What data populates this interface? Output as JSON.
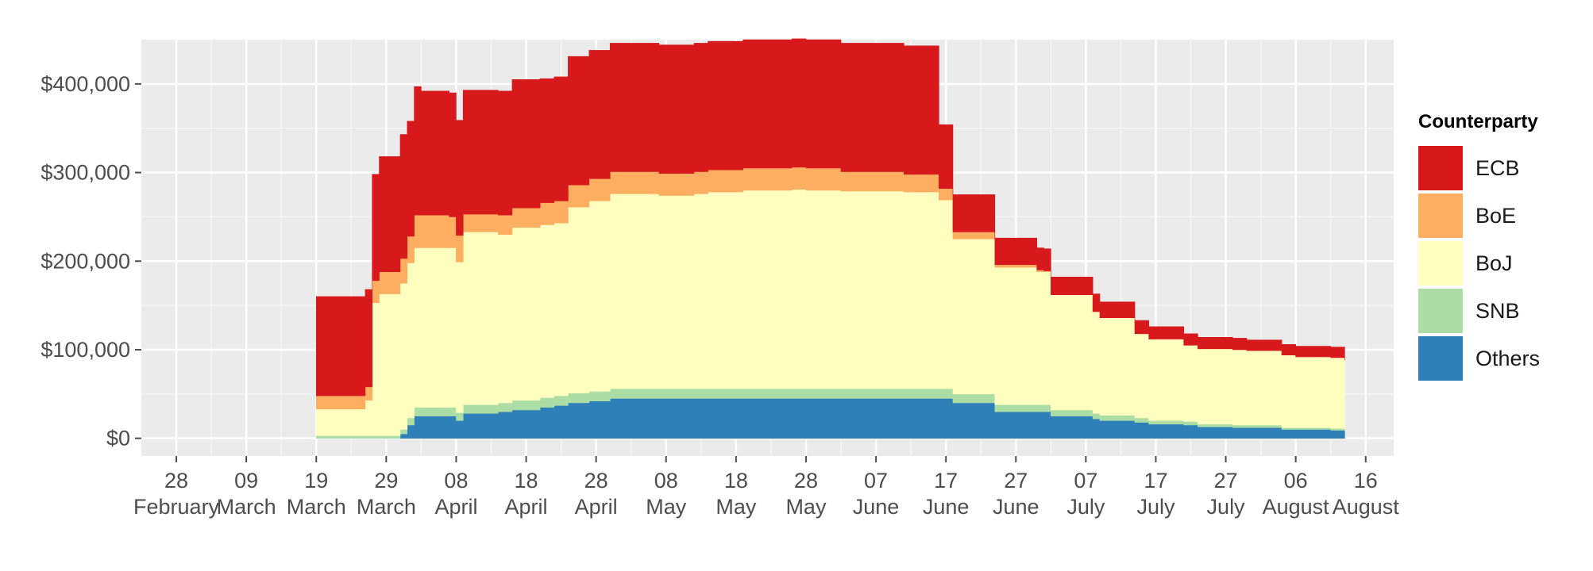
{
  "chart_data": {
    "type": "area",
    "stacked": true,
    "title": "",
    "xlabel": "",
    "ylabel": "",
    "y_ticks": [
      "$0",
      "$100,000",
      "$200,000",
      "$300,000",
      "$400,000"
    ],
    "y_tick_values": [
      0,
      100000,
      200000,
      300000,
      400000
    ],
    "ylim": [
      -20000,
      450000
    ],
    "x_ticks": [
      {
        "date": "2020-02-28",
        "day": "28",
        "month": "February"
      },
      {
        "date": "2020-03-09",
        "day": "09",
        "month": "March"
      },
      {
        "date": "2020-03-19",
        "day": "19",
        "month": "March"
      },
      {
        "date": "2020-03-29",
        "day": "29",
        "month": "March"
      },
      {
        "date": "2020-04-08",
        "day": "08",
        "month": "April"
      },
      {
        "date": "2020-04-18",
        "day": "18",
        "month": "April"
      },
      {
        "date": "2020-04-28",
        "day": "28",
        "month": "April"
      },
      {
        "date": "2020-05-08",
        "day": "08",
        "month": "May"
      },
      {
        "date": "2020-05-18",
        "day": "18",
        "month": "May"
      },
      {
        "date": "2020-05-28",
        "day": "28",
        "month": "May"
      },
      {
        "date": "2020-06-07",
        "day": "07",
        "month": "June"
      },
      {
        "date": "2020-06-17",
        "day": "17",
        "month": "June"
      },
      {
        "date": "2020-06-27",
        "day": "27",
        "month": "June"
      },
      {
        "date": "2020-07-07",
        "day": "07",
        "month": "July"
      },
      {
        "date": "2020-07-17",
        "day": "17",
        "month": "July"
      },
      {
        "date": "2020-07-27",
        "day": "27",
        "month": "July"
      },
      {
        "date": "2020-08-06",
        "day": "06",
        "month": "August"
      },
      {
        "date": "2020-08-16",
        "day": "16",
        "month": "August"
      }
    ],
    "xlim": [
      "2020-02-23",
      "2020-08-20"
    ],
    "grid": true,
    "legend_position": "right",
    "legend_title": "Counterparty",
    "x": [
      "2020-03-19",
      "2020-03-20",
      "2020-03-26",
      "2020-03-27",
      "2020-03-28",
      "2020-03-31",
      "2020-04-01",
      "2020-04-02",
      "2020-04-03",
      "2020-04-07",
      "2020-04-08",
      "2020-04-09",
      "2020-04-14",
      "2020-04-16",
      "2020-04-20",
      "2020-04-22",
      "2020-04-24",
      "2020-04-27",
      "2020-04-30",
      "2020-05-05",
      "2020-05-07",
      "2020-05-12",
      "2020-05-14",
      "2020-05-19",
      "2020-05-21",
      "2020-05-26",
      "2020-05-28",
      "2020-06-02",
      "2020-06-04",
      "2020-06-09",
      "2020-06-10",
      "2020-06-11",
      "2020-06-16",
      "2020-06-17",
      "2020-06-18",
      "2020-06-23",
      "2020-06-24",
      "2020-06-25",
      "2020-06-30",
      "2020-07-01",
      "2020-07-02",
      "2020-07-07",
      "2020-07-08",
      "2020-07-09",
      "2020-07-14",
      "2020-07-15",
      "2020-07-16",
      "2020-07-21",
      "2020-07-23",
      "2020-07-28",
      "2020-07-30",
      "2020-08-04",
      "2020-08-06",
      "2020-08-11",
      "2020-08-13"
    ],
    "series": [
      {
        "name": "Others",
        "color": "#2f7fb8",
        "values": [
          0,
          0,
          0,
          0,
          0,
          5000,
          15000,
          25000,
          25000,
          25000,
          20000,
          28000,
          30000,
          32000,
          35000,
          37000,
          40000,
          42000,
          45000,
          45000,
          45000,
          45000,
          45000,
          45000,
          45000,
          45000,
          45000,
          45000,
          45000,
          45000,
          45000,
          45000,
          45000,
          45000,
          40000,
          40000,
          30000,
          30000,
          30000,
          30000,
          25000,
          25000,
          22000,
          20000,
          18000,
          18000,
          16000,
          15000,
          13000,
          12000,
          12000,
          10000,
          10000,
          9000,
          8000
        ]
      },
      {
        "name": "SNB",
        "color": "#abdda4",
        "values": [
          3000,
          3000,
          3000,
          3000,
          3000,
          5000,
          8000,
          10000,
          10000,
          10000,
          9000,
          10000,
          10000,
          11000,
          11000,
          11000,
          11000,
          11000,
          11000,
          11000,
          11000,
          11000,
          11000,
          11000,
          11000,
          11000,
          11000,
          11000,
          11000,
          11000,
          11000,
          11000,
          11000,
          11000,
          10000,
          10000,
          8000,
          8000,
          8000,
          8000,
          7000,
          7000,
          6000,
          6000,
          5000,
          5000,
          4000,
          4000,
          3000,
          3000,
          3000,
          2000,
          2000,
          2000,
          2000
        ]
      },
      {
        "name": "BoJ",
        "color": "#ffffbf",
        "values": [
          30000,
          30000,
          40000,
          150000,
          160000,
          165000,
          175000,
          180000,
          180000,
          180000,
          170000,
          195000,
          190000,
          195000,
          195000,
          195000,
          210000,
          215000,
          220000,
          220000,
          218000,
          220000,
          222000,
          224000,
          224000,
          225000,
          224000,
          223000,
          223000,
          223000,
          223000,
          222000,
          213000,
          213000,
          175000,
          175000,
          155000,
          155000,
          150000,
          150000,
          130000,
          130000,
          115000,
          110000,
          95000,
          95000,
          92000,
          86000,
          85000,
          85000,
          84000,
          82000,
          80000,
          80000,
          78000
        ]
      },
      {
        "name": "BoE",
        "color": "#fdae61",
        "values": [
          15000,
          15000,
          15000,
          25000,
          25000,
          28000,
          30000,
          37000,
          37000,
          35000,
          30000,
          20000,
          22000,
          22000,
          25000,
          25000,
          25000,
          25000,
          25000,
          25000,
          25000,
          25000,
          25000,
          25000,
          25000,
          25000,
          25000,
          22000,
          22000,
          22000,
          22000,
          20000,
          13000,
          13000,
          8000,
          8000,
          3000,
          3000,
          2000,
          1000,
          0,
          0,
          0,
          0,
          0,
          0,
          0,
          0,
          0,
          0,
          0,
          0,
          0,
          0,
          0
        ]
      },
      {
        "name": "ECB",
        "color": "#d7191c",
        "values": [
          112000,
          112000,
          110000,
          120000,
          130000,
          140000,
          130000,
          145000,
          140000,
          140000,
          130000,
          140000,
          140000,
          145000,
          140000,
          140000,
          145000,
          145000,
          145000,
          145000,
          145000,
          145000,
          145000,
          145000,
          145000,
          145000,
          145000,
          145000,
          145000,
          145000,
          145000,
          145000,
          72000,
          72000,
          42000,
          42000,
          30000,
          30000,
          25000,
          25000,
          20000,
          20000,
          20000,
          18000,
          15000,
          15000,
          14000,
          13000,
          13000,
          13000,
          12000,
          12000,
          12000,
          12000,
          12000
        ]
      }
    ]
  }
}
